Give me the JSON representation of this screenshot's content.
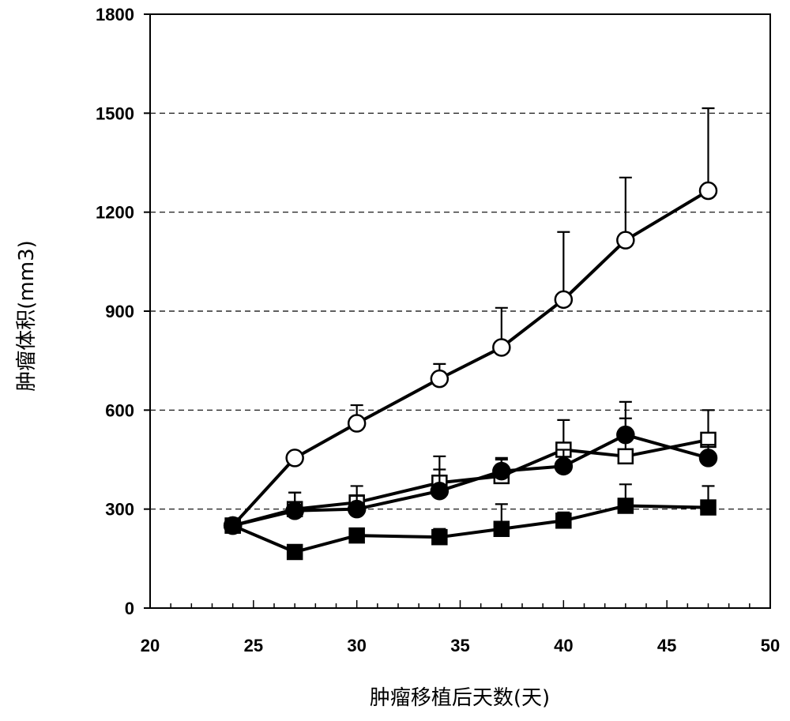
{
  "chart_data": {
    "type": "line",
    "xlabel": "肿瘤移植后天数(天)",
    "ylabel": "肿瘤体积(mm3)",
    "xlim": [
      20,
      50
    ],
    "ylim": [
      0,
      1800
    ],
    "xticks": [
      20,
      25,
      30,
      35,
      40,
      45,
      50
    ],
    "yticks": [
      0,
      300,
      600,
      900,
      1200,
      1500,
      1800
    ],
    "ytick_labels": [
      "0",
      "300",
      "600",
      "900",
      "1200",
      "1500",
      "1800"
    ],
    "xtick_labels": [
      "20",
      "25",
      "30",
      "35",
      "40",
      "45",
      "50"
    ],
    "grid": "horizontal dashed",
    "series": [
      {
        "marker": "open-circle",
        "x": [
          24,
          27,
          30,
          34,
          37,
          40,
          43,
          47
        ],
        "y": [
          250,
          455,
          560,
          695,
          790,
          935,
          1115,
          1265
        ],
        "err": [
          0,
          0,
          55,
          45,
          120,
          205,
          190,
          250
        ]
      },
      {
        "marker": "open-square",
        "x": [
          24,
          27,
          30,
          34,
          37,
          40,
          43,
          47
        ],
        "y": [
          250,
          300,
          320,
          380,
          400,
          480,
          460,
          510
        ],
        "err": [
          0,
          50,
          50,
          80,
          50,
          90,
          165,
          90
        ]
      },
      {
        "marker": "filled-circle",
        "x": [
          24,
          27,
          30,
          34,
          37,
          40,
          43,
          47
        ],
        "y": [
          250,
          295,
          300,
          355,
          415,
          430,
          525,
          455
        ],
        "err": [
          0,
          55,
          40,
          65,
          40,
          50,
          50,
          40
        ]
      },
      {
        "marker": "filled-square",
        "x": [
          24,
          27,
          30,
          34,
          37,
          40,
          43,
          47
        ],
        "y": [
          250,
          170,
          220,
          215,
          240,
          265,
          310,
          305
        ],
        "err": [
          0,
          0,
          15,
          25,
          75,
          25,
          65,
          65
        ]
      }
    ]
  }
}
